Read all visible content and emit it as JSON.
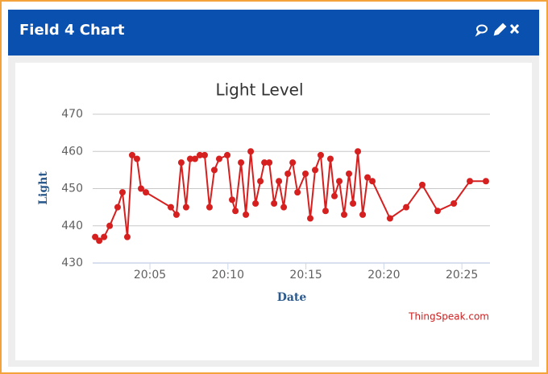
{
  "header": {
    "title": "Field 4 Chart"
  },
  "chart_data": {
    "type": "line",
    "title": "Light Level",
    "x_label": "Date",
    "y_label": "Light",
    "credit": "ThingSpeak.com",
    "color": "#d62020",
    "x": [
      1.49,
      1.75,
      2.06,
      2.42,
      2.93,
      3.24,
      3.55,
      3.86,
      4.17,
      4.43,
      4.74,
      6.34,
      6.7,
      7.01,
      7.32,
      7.58,
      7.89,
      8.2,
      8.51,
      8.82,
      9.13,
      9.44,
      9.96,
      10.27,
      10.48,
      10.84,
      11.15,
      11.46,
      11.77,
      12.08,
      12.34,
      12.65,
      12.96,
      13.27,
      13.58,
      13.84,
      14.15,
      14.46,
      14.97,
      15.28,
      15.59,
      15.95,
      16.26,
      16.57,
      16.83,
      17.14,
      17.45,
      17.76,
      18.02,
      18.33,
      18.64,
      18.95,
      19.26,
      20.39,
      21.43,
      22.46,
      23.44,
      24.48,
      25.51,
      26.54
    ],
    "values": [
      437,
      436,
      437,
      440,
      445,
      449,
      437,
      459,
      458,
      450,
      449,
      445,
      443,
      457,
      445,
      458,
      458,
      459,
      459,
      445,
      455,
      458,
      459,
      447,
      444,
      457,
      443,
      460,
      446,
      452,
      457,
      457,
      446,
      452,
      445,
      454,
      457,
      449,
      454,
      442,
      455,
      459,
      444,
      458,
      448,
      452,
      443,
      454,
      446,
      460,
      443,
      453,
      452,
      442,
      445,
      451,
      444,
      446,
      452,
      452
    ],
    "xlim": [
      1.33,
      26.8
    ],
    "xticks": [
      {
        "value": 5,
        "label": "20:05"
      },
      {
        "value": 10,
        "label": "20:10"
      },
      {
        "value": 15,
        "label": "20:15"
      },
      {
        "value": 20,
        "label": "20:20"
      },
      {
        "value": 25,
        "label": "20:25"
      }
    ],
    "ylim": [
      430,
      470
    ],
    "yticks": [
      430,
      440,
      450,
      460,
      470
    ],
    "grid": true
  }
}
